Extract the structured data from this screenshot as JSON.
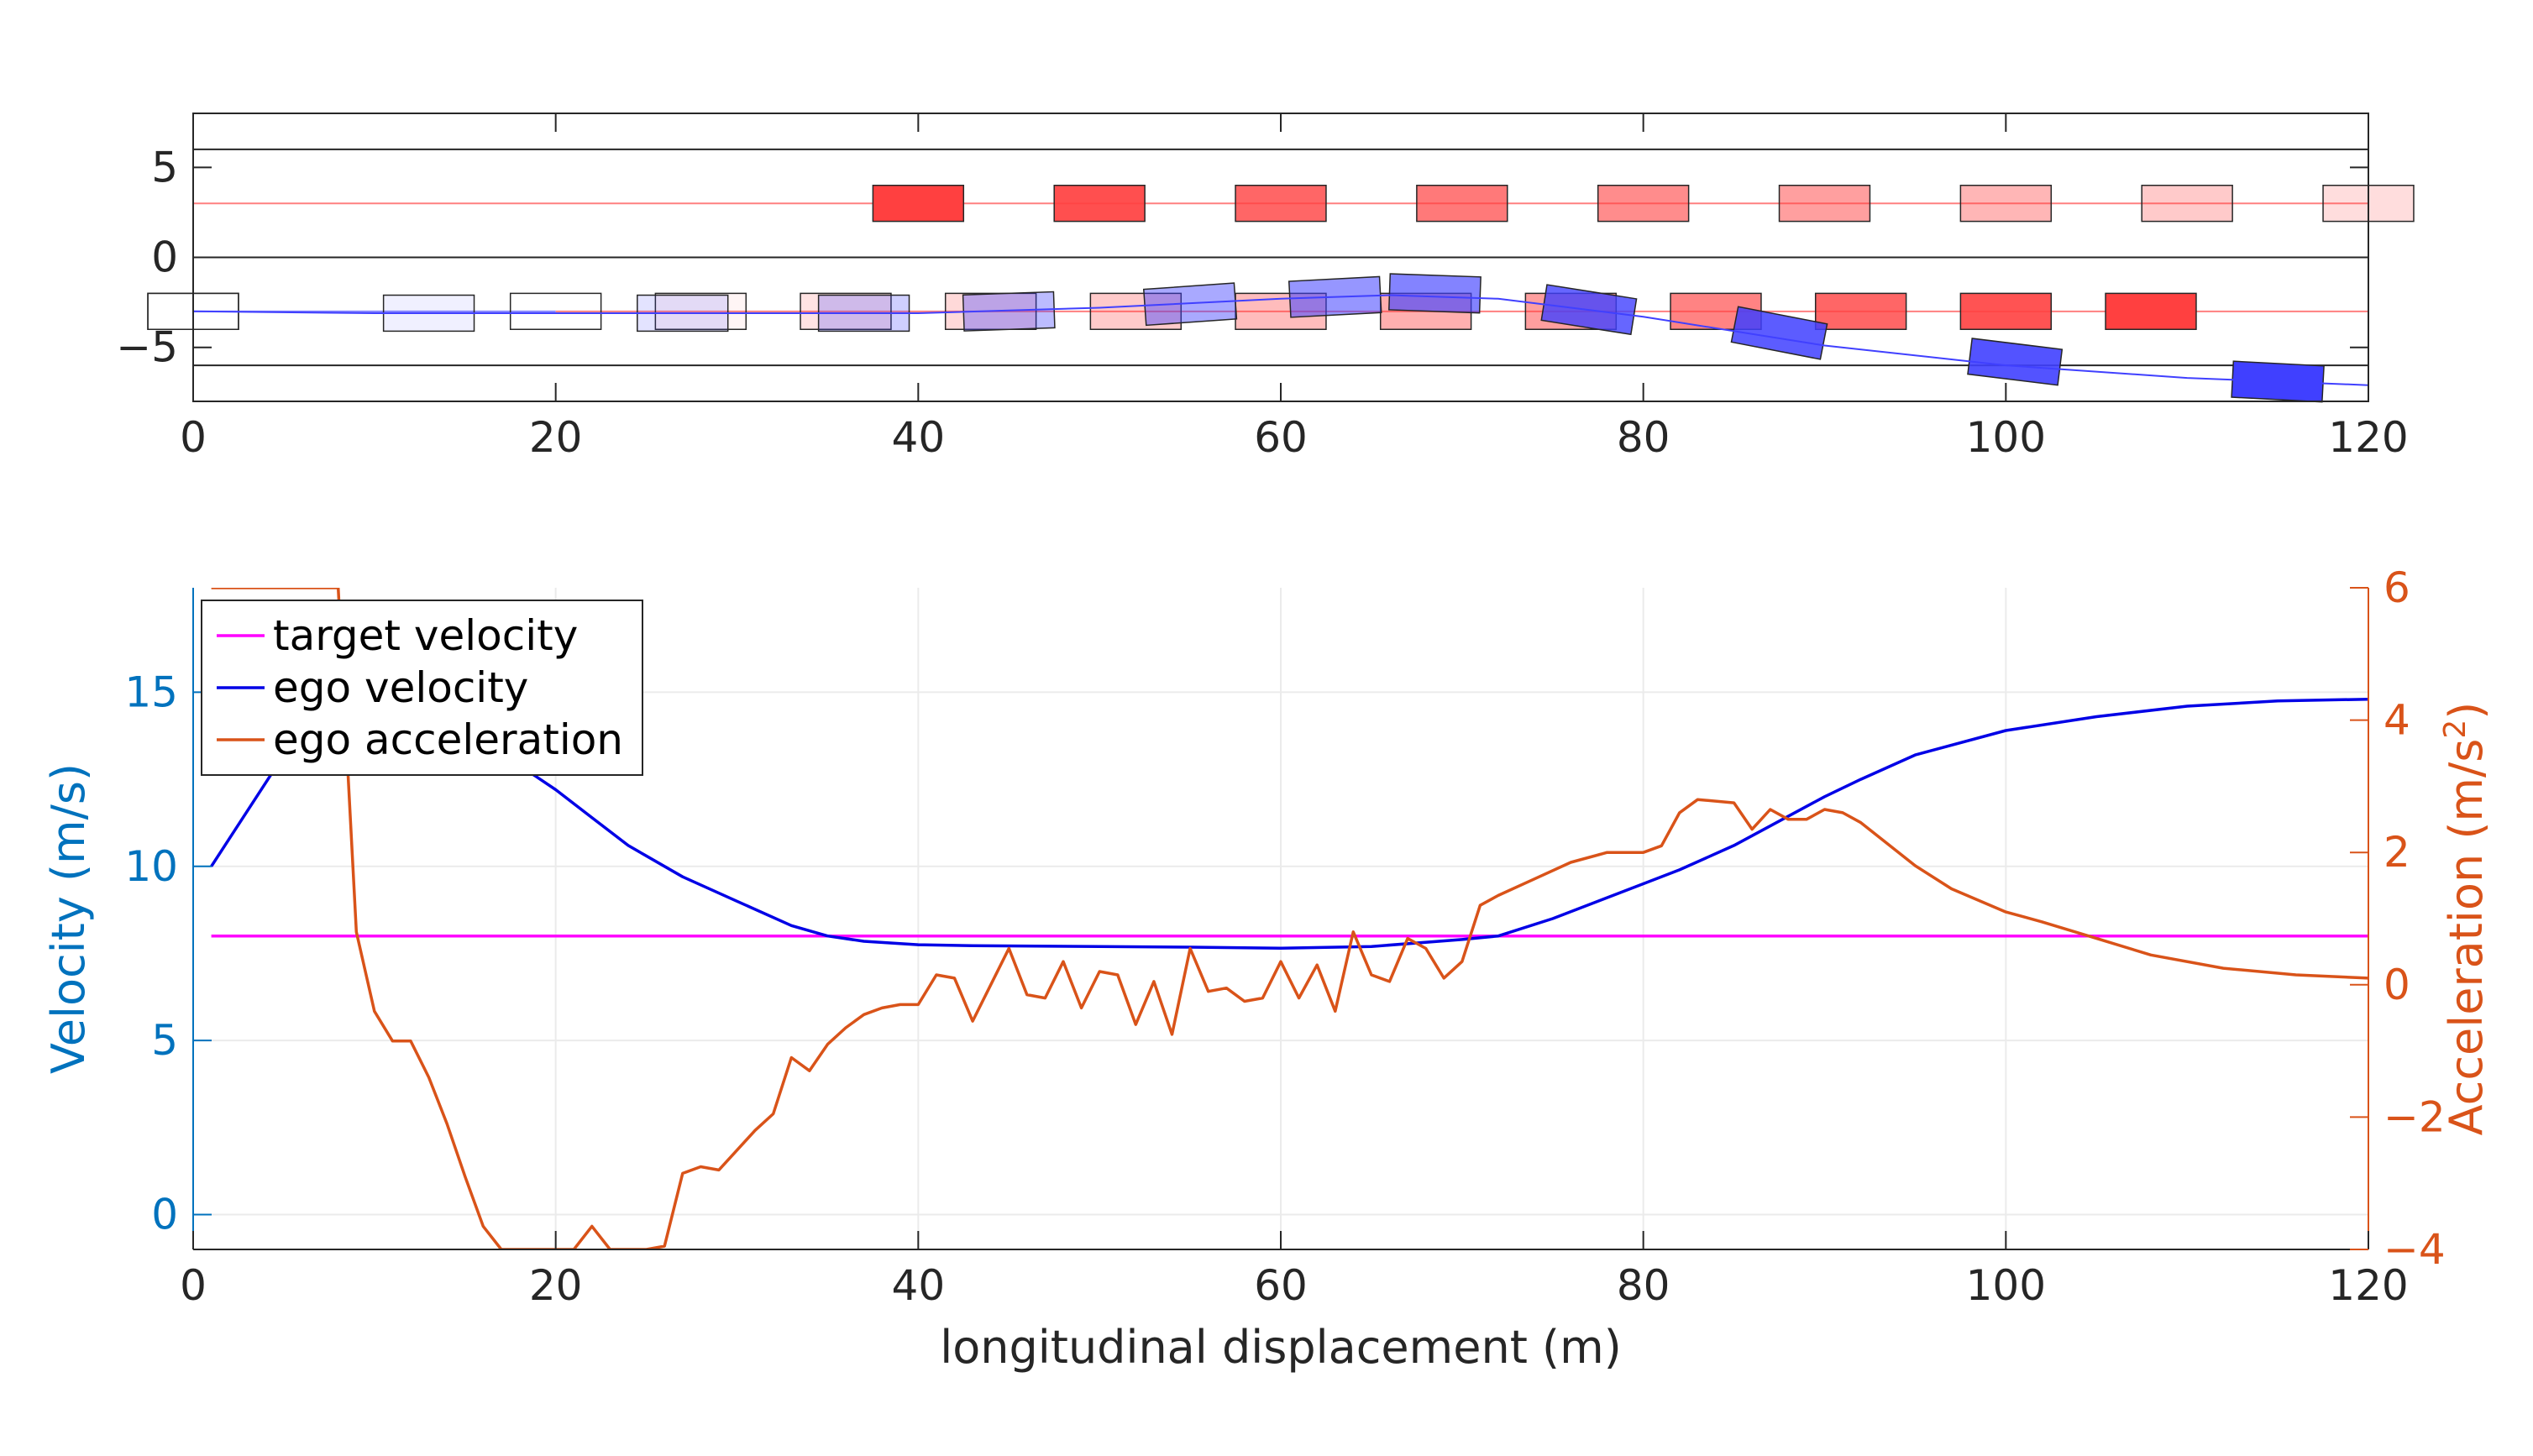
{
  "chart_data": [
    {
      "type": "scatter",
      "title": "",
      "xlabel": "",
      "ylabel": "",
      "xlim": [
        0,
        120
      ],
      "ylim": [
        -8,
        8
      ],
      "xticks": [
        0,
        20,
        40,
        60,
        80,
        100,
        120
      ],
      "yticks": [
        -5,
        0,
        5
      ],
      "grid": false,
      "lane_boundaries": [
        6,
        0,
        -6
      ],
      "lanes": [
        {
          "name": "",
          "y": 3,
          "color": "#ff8080",
          "x_range": [
            0,
            120
          ]
        },
        {
          "name": "",
          "y": -3,
          "color": "#8080ff",
          "x_range": [
            0,
            20
          ]
        },
        {
          "name": "",
          "y": -3,
          "color": "#ff8080",
          "x_range": [
            20,
            120
          ]
        }
      ],
      "ego_path": [
        [
          0,
          -3
        ],
        [
          10,
          -3.1
        ],
        [
          20,
          -3.1
        ],
        [
          30,
          -3.1
        ],
        [
          40,
          -3.1
        ],
        [
          50,
          -2.8
        ],
        [
          60,
          -2.3
        ],
        [
          66,
          -2.1
        ],
        [
          72,
          -2.3
        ],
        [
          80,
          -3.3
        ],
        [
          90,
          -4.9
        ],
        [
          100,
          -6.0
        ],
        [
          110,
          -6.7
        ],
        [
          120,
          -7.1
        ]
      ],
      "series": [
        {
          "color": "#ff4040",
          "vehicles": [
            {
              "x": 40,
              "y": 3,
              "angle": 0,
              "alpha": 1.0
            },
            {
              "x": 50,
              "y": 3,
              "angle": 0,
              "alpha": 0.92
            },
            {
              "x": 60,
              "y": 3,
              "angle": 0,
              "alpha": 0.8
            },
            {
              "x": 70,
              "y": 3,
              "angle": 0,
              "alpha": 0.7
            },
            {
              "x": 80,
              "y": 3,
              "angle": 0,
              "alpha": 0.6
            },
            {
              "x": 90,
              "y": 3,
              "angle": 0,
              "alpha": 0.5
            },
            {
              "x": 100,
              "y": 3,
              "angle": 0,
              "alpha": 0.38
            },
            {
              "x": 110,
              "y": 3,
              "angle": 0,
              "alpha": 0.28
            },
            {
              "x": 120,
              "y": 3,
              "angle": 0,
              "alpha": 0.18
            },
            {
              "x": 0,
              "y": -3,
              "angle": 0,
              "alpha": 0.0
            },
            {
              "x": 20,
              "y": -3,
              "angle": 0,
              "alpha": 0.0
            },
            {
              "x": 28,
              "y": -3,
              "angle": 0,
              "alpha": 0.05
            },
            {
              "x": 36,
              "y": -3,
              "angle": 0,
              "alpha": 0.15
            },
            {
              "x": 44,
              "y": -3,
              "angle": 0,
              "alpha": 0.2
            },
            {
              "x": 52,
              "y": -3,
              "angle": 0,
              "alpha": 0.28
            },
            {
              "x": 60,
              "y": -3,
              "angle": 0,
              "alpha": 0.35
            },
            {
              "x": 68,
              "y": -3,
              "angle": 0,
              "alpha": 0.42
            },
            {
              "x": 76,
              "y": -3,
              "angle": 0,
              "alpha": 0.5
            },
            {
              "x": 84,
              "y": -3,
              "angle": 0,
              "alpha": 0.65
            },
            {
              "x": 92,
              "y": -3,
              "angle": 0,
              "alpha": 0.8
            },
            {
              "x": 100,
              "y": -3,
              "angle": 0,
              "alpha": 0.9
            },
            {
              "x": 108,
              "y": -3,
              "angle": 0,
              "alpha": 1.0
            }
          ]
        },
        {
          "color": "#4040ff",
          "vehicles": [
            {
              "x": 0,
              "y": -3,
              "angle": 0,
              "alpha": 0.0
            },
            {
              "x": 13,
              "y": -3.1,
              "angle": 0,
              "alpha": 0.08
            },
            {
              "x": 27,
              "y": -3.1,
              "angle": 0,
              "alpha": 0.15
            },
            {
              "x": 37,
              "y": -3.1,
              "angle": 0,
              "alpha": 0.25
            },
            {
              "x": 45,
              "y": -3.0,
              "angle": -2,
              "alpha": 0.35
            },
            {
              "x": 55,
              "y": -2.6,
              "angle": -4,
              "alpha": 0.45
            },
            {
              "x": 63,
              "y": -2.2,
              "angle": -3,
              "alpha": 0.55
            },
            {
              "x": 68.5,
              "y": -2.0,
              "angle": 2,
              "alpha": 0.65
            },
            {
              "x": 77,
              "y": -2.9,
              "angle": 9,
              "alpha": 0.8
            },
            {
              "x": 87.5,
              "y": -4.2,
              "angle": 11,
              "alpha": 0.85
            },
            {
              "x": 100.5,
              "y": -5.8,
              "angle": 7,
              "alpha": 0.9
            },
            {
              "x": 115,
              "y": -6.9,
              "angle": 3,
              "alpha": 1.0
            }
          ]
        }
      ]
    },
    {
      "type": "line",
      "title": "",
      "xlabel": "longitudinal displacement (m)",
      "ylabel": "Velocity (m/s)",
      "ylabel_right": "Acceleration (m/s",
      "ylabel_right_sup": "2",
      "ylabel_right_tail": ")",
      "xlim": [
        0,
        120
      ],
      "ylim": [
        -1,
        18
      ],
      "ylim_right": [
        -4,
        6
      ],
      "xticks": [
        0,
        20,
        40,
        60,
        80,
        100,
        120
      ],
      "yticks": [
        0,
        5,
        10,
        15
      ],
      "yticks_right": [
        -4,
        -2,
        0,
        2,
        4,
        6
      ],
      "grid": true,
      "legend_position": "top-left",
      "series": [
        {
          "name": "target velocity",
          "color": "#ff00ff",
          "axis": "left",
          "x": [
            1,
            120
          ],
          "y": [
            8,
            8
          ]
        },
        {
          "name": "ego velocity",
          "color": "#0000e6",
          "axis": "left",
          "x": [
            1,
            2,
            4,
            6,
            8,
            10,
            12,
            14,
            16,
            18,
            20,
            22,
            24,
            27,
            30,
            33,
            35,
            37,
            40,
            43,
            50,
            55,
            60,
            65,
            70,
            72,
            75,
            80,
            82,
            85,
            90,
            92,
            95,
            100,
            105,
            110,
            115,
            120
          ],
          "y": [
            10,
            10.8,
            12.4,
            14.0,
            15.6,
            15.8,
            15.5,
            14.8,
            13.8,
            12.9,
            12.2,
            11.4,
            10.6,
            9.7,
            9.0,
            8.3,
            8.0,
            7.85,
            7.75,
            7.72,
            7.7,
            7.68,
            7.65,
            7.7,
            7.9,
            8.0,
            8.5,
            9.5,
            9.9,
            10.6,
            12.0,
            12.5,
            13.2,
            13.9,
            14.3,
            14.6,
            14.75,
            14.8
          ]
        },
        {
          "name": "ego acceleration",
          "color": "#d95319",
          "axis": "right",
          "x": [
            1,
            8,
            9,
            10,
            11,
            12,
            13,
            14,
            15,
            16,
            17,
            18,
            19,
            20,
            21,
            22,
            23,
            24,
            25,
            26,
            27,
            28,
            29,
            30,
            31,
            32,
            33,
            34,
            35,
            36,
            37,
            38,
            39,
            40,
            41,
            42,
            43,
            44,
            45,
            46,
            47,
            48,
            49,
            50,
            51,
            52,
            53,
            54,
            55,
            56,
            57,
            58,
            59,
            60,
            61,
            62,
            63,
            64,
            65,
            66,
            67,
            68,
            69,
            70,
            71,
            72,
            74,
            76,
            78,
            80,
            81,
            82,
            83,
            85,
            86,
            87,
            88,
            89,
            90,
            91,
            92,
            95,
            97,
            100,
            102,
            105,
            108,
            112,
            116,
            120
          ],
          "y": [
            6,
            6,
            0.8,
            -0.4,
            -0.85,
            -0.85,
            -1.4,
            -2.1,
            -2.9,
            -3.65,
            -4,
            -4,
            -4,
            -4,
            -4,
            -3.65,
            -4,
            -4,
            -4,
            -3.95,
            -2.85,
            -2.75,
            -2.8,
            -2.5,
            -2.2,
            -1.95,
            -1.1,
            -1.3,
            -0.9,
            -0.65,
            -0.45,
            -0.35,
            -0.3,
            -0.3,
            0.15,
            0.1,
            -0.55,
            0.0,
            0.55,
            -0.15,
            -0.2,
            0.35,
            -0.35,
            0.2,
            0.15,
            -0.6,
            0.05,
            -0.75,
            0.55,
            -0.1,
            -0.05,
            -0.25,
            -0.2,
            0.35,
            -0.2,
            0.3,
            -0.4,
            0.8,
            0.15,
            0.05,
            0.7,
            0.55,
            0.1,
            0.35,
            1.2,
            1.35,
            1.6,
            1.85,
            2.0,
            2.0,
            2.1,
            2.6,
            2.8,
            2.75,
            2.35,
            2.65,
            2.5,
            2.5,
            2.65,
            2.6,
            2.45,
            1.8,
            1.45,
            1.1,
            0.95,
            0.7,
            0.45,
            0.25,
            0.15,
            0.1
          ]
        }
      ]
    }
  ]
}
